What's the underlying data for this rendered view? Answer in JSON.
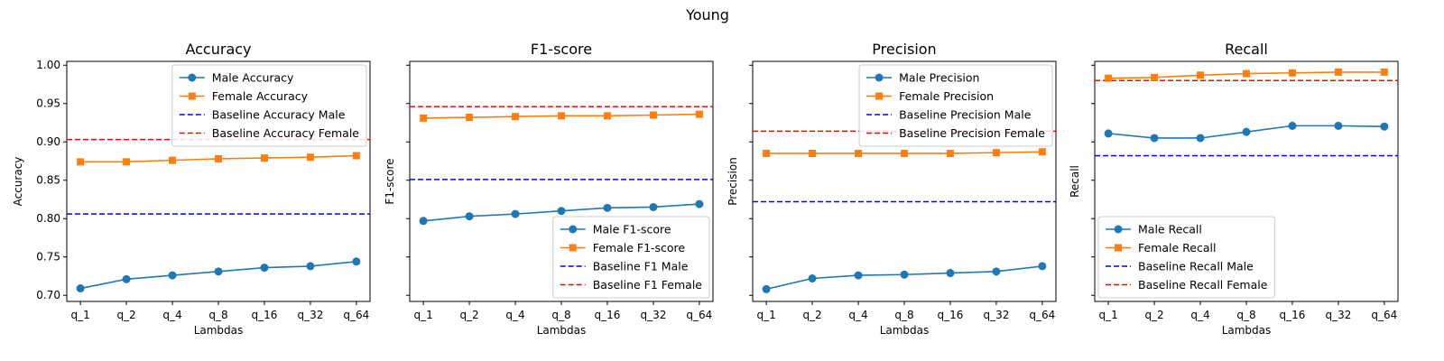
{
  "figure_title": "Young",
  "colors": {
    "male": "#1f77b4",
    "female": "#ff7f0e",
    "baseline_male": "#0000ff",
    "baseline_female": "#ff0000"
  },
  "chart_data": [
    {
      "type": "line",
      "title": "Accuracy",
      "xlabel": "Lambdas",
      "ylabel": "Accuracy",
      "categories": [
        "q_1",
        "q_2",
        "q_4",
        "q_8",
        "q_16",
        "q_32",
        "q_64"
      ],
      "ylim": [
        0.692,
        1.005
      ],
      "yticks": [
        "0.70",
        "0.75",
        "0.80",
        "0.85",
        "0.90",
        "0.95",
        "1.00"
      ],
      "show_ytick_labels": true,
      "legend_position": "top-right",
      "series": [
        {
          "name": "Male Accuracy",
          "marker": "circle",
          "values": [
            0.709,
            0.721,
            0.726,
            0.731,
            0.736,
            0.738,
            0.744
          ]
        },
        {
          "name": "Female Accuracy",
          "marker": "square",
          "values": [
            0.874,
            0.874,
            0.876,
            0.878,
            0.879,
            0.88,
            0.882
          ]
        }
      ],
      "baselines": [
        {
          "name": "Baseline Accuracy Male",
          "value": 0.806
        },
        {
          "name": "Baseline Accuracy Female",
          "value": 0.903
        }
      ]
    },
    {
      "type": "line",
      "title": "F1-score",
      "xlabel": "Lambdas",
      "ylabel": "F1-score",
      "categories": [
        "q_1",
        "q_2",
        "q_4",
        "q_8",
        "q_16",
        "q_32",
        "q_64"
      ],
      "ylim": [
        0.692,
        1.005
      ],
      "yticks": [
        "0.70",
        "0.75",
        "0.80",
        "0.85",
        "0.90",
        "0.95",
        "1.00"
      ],
      "show_ytick_labels": false,
      "legend_position": "lower-right",
      "series": [
        {
          "name": "Male F1-score",
          "marker": "circle",
          "values": [
            0.797,
            0.803,
            0.806,
            0.81,
            0.814,
            0.815,
            0.819
          ]
        },
        {
          "name": "Female F1-score",
          "marker": "square",
          "values": [
            0.931,
            0.932,
            0.933,
            0.934,
            0.934,
            0.935,
            0.936
          ]
        }
      ],
      "baselines": [
        {
          "name": "Baseline F1 Male",
          "value": 0.851
        },
        {
          "name": "Baseline F1 Female",
          "value": 0.946
        }
      ]
    },
    {
      "type": "line",
      "title": "Precision",
      "xlabel": "Lambdas",
      "ylabel": "Precision",
      "categories": [
        "q_1",
        "q_2",
        "q_4",
        "q_8",
        "q_16",
        "q_32",
        "q_64"
      ],
      "ylim": [
        0.692,
        1.005
      ],
      "yticks": [
        "0.70",
        "0.75",
        "0.80",
        "0.85",
        "0.90",
        "0.95",
        "1.00"
      ],
      "show_ytick_labels": false,
      "legend_position": "top-right",
      "series": [
        {
          "name": "Male Precision",
          "marker": "circle",
          "values": [
            0.708,
            0.722,
            0.726,
            0.727,
            0.729,
            0.731,
            0.738
          ]
        },
        {
          "name": "Female Precision",
          "marker": "square",
          "values": [
            0.885,
            0.885,
            0.885,
            0.885,
            0.885,
            0.886,
            0.887
          ]
        }
      ],
      "baselines": [
        {
          "name": "Baseline Precision Male",
          "value": 0.822
        },
        {
          "name": "Baseline Precision Female",
          "value": 0.914
        }
      ]
    },
    {
      "type": "line",
      "title": "Recall",
      "xlabel": "Lambdas",
      "ylabel": "Recall",
      "categories": [
        "q_1",
        "q_2",
        "q_4",
        "q_8",
        "q_16",
        "q_32",
        "q_64"
      ],
      "ylim": [
        0.692,
        1.005
      ],
      "yticks": [
        "0.70",
        "0.75",
        "0.80",
        "0.85",
        "0.90",
        "0.95",
        "1.00"
      ],
      "show_ytick_labels": false,
      "legend_position": "lower-left",
      "series": [
        {
          "name": "Male Recall",
          "marker": "circle",
          "values": [
            0.911,
            0.905,
            0.905,
            0.913,
            0.921,
            0.921,
            0.92
          ]
        },
        {
          "name": "Female Recall",
          "marker": "square",
          "values": [
            0.983,
            0.984,
            0.987,
            0.989,
            0.99,
            0.991,
            0.991
          ]
        }
      ],
      "baselines": [
        {
          "name": "Baseline Recall Male",
          "value": 0.882
        },
        {
          "name": "Baseline Recall Female",
          "value": 0.98
        }
      ]
    }
  ]
}
